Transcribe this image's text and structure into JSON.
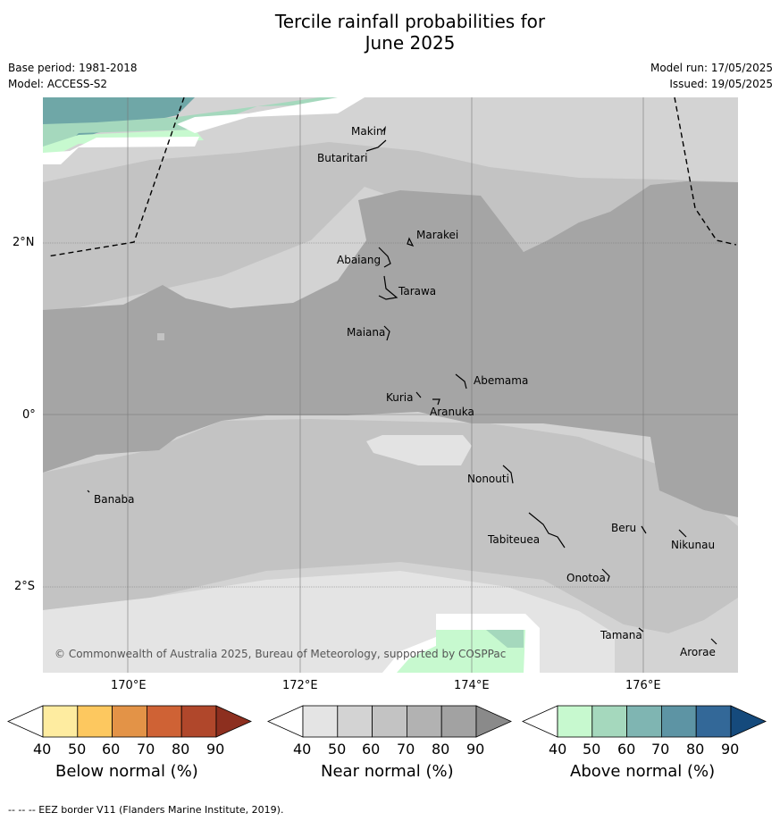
{
  "header": {
    "title_line1": "Tercile rainfall probabilities for",
    "title_line2": "June 2025",
    "base_period": "Base period: 1981-2018",
    "model": "Model: ACCESS-S2",
    "model_run": "Model run: 17/05/2025",
    "issued": "Issued: 19/05/2025"
  },
  "map": {
    "lat_labels": [
      "2°N",
      "0°",
      "2°S"
    ],
    "lon_labels": [
      "170°E",
      "172°E",
      "174°E",
      "176°E"
    ],
    "places": [
      "Makin",
      "Butaritari",
      "Marakei",
      "Abaiang",
      "Tarawa",
      "Maiana",
      "Abemama",
      "Kuria",
      "Aranuka",
      "Nonouti",
      "Banaba",
      "Beru",
      "Nikunau",
      "Tabiteuea",
      "Onotoa",
      "Tamana",
      "Arorae"
    ],
    "copyright": "© Commonwealth of Australia 2025, Bureau of Meteorology, supported by COSPPac"
  },
  "legend": {
    "below": {
      "title": "Below normal (%)",
      "ticks": [
        "40",
        "50",
        "60",
        "70",
        "80",
        "90"
      ],
      "colors": [
        "#ffffff",
        "#feeca0",
        "#fdc85f",
        "#e39347",
        "#cf6235",
        "#b0472b",
        "#8d2f1f"
      ]
    },
    "near": {
      "title": "Near normal (%)",
      "ticks": [
        "40",
        "50",
        "60",
        "70",
        "80",
        "90"
      ],
      "colors": [
        "#ffffff",
        "#e4e4e4",
        "#d3d3d3",
        "#c3c3c3",
        "#b2b2b2",
        "#a2a2a2",
        "#8a8a8a"
      ]
    },
    "above": {
      "title": "Above normal (%)",
      "ticks": [
        "40",
        "50",
        "60",
        "70",
        "80",
        "90"
      ],
      "colors": [
        "#ffffff",
        "#c7f9cf",
        "#a5d8bd",
        "#7fb5b2",
        "#5d94a4",
        "#336898",
        "#154a7c"
      ]
    }
  },
  "footer": {
    "note": "--  --  -- EEZ border V11 (Flanders Marine Institute, 2019)."
  }
}
